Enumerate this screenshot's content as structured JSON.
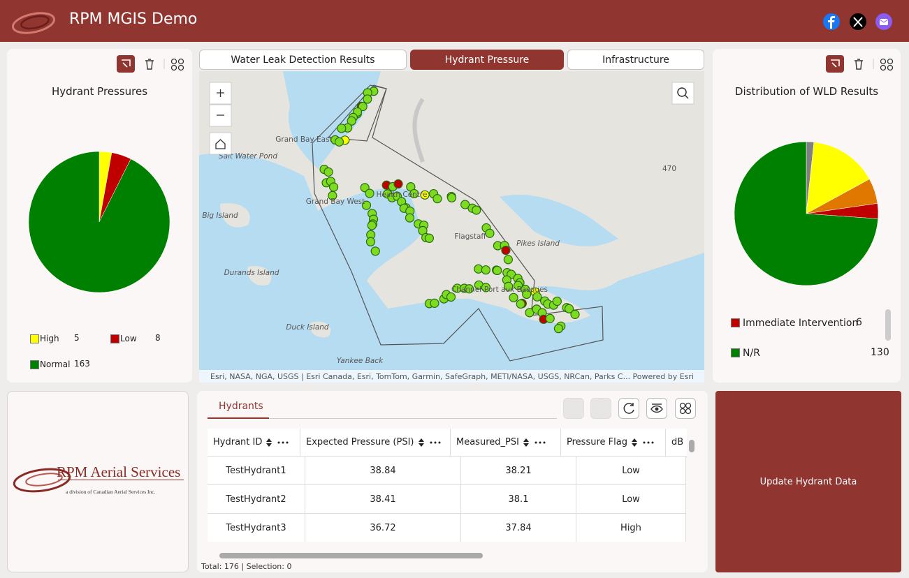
{
  "header": {
    "title": "RPM MGIS Demo"
  },
  "tabs": [
    "Water Leak Detection Results",
    "Hydrant Pressure",
    "Infrastructure"
  ],
  "chart_data": [
    {
      "type": "pie",
      "title": "Hydrant Pressures",
      "categories": [
        "High",
        "Low",
        "Normal"
      ],
      "values": [
        5,
        8,
        163
      ],
      "colors": [
        "#ffff00",
        "#c00000",
        "#008000"
      ]
    },
    {
      "type": "pie",
      "title": "Distribution of WLD Results",
      "categories": [
        null,
        null,
        null,
        "Immediate Intervention",
        "N/R"
      ],
      "values": [
        3,
        27,
        10,
        6,
        130
      ],
      "colors": [
        "#808080",
        "#ffff00",
        "#e07800",
        "#c00000",
        "#008000"
      ]
    }
  ],
  "map": {
    "labels": [
      "Grand Bay East",
      "Salt Water Pond",
      "Grand Bay West",
      "Big Island",
      "Durands Island",
      "Duck Island",
      "Yankee Back",
      "Pikes Island",
      "Flagstaff",
      "Health Centre",
      "Channel-Port aux Basques",
      "470"
    ],
    "attribution": "Esri, NASA, NGA, USGS | Esri Canada, Esri, TomTom, Garmin, SafeGraph, METI/NASA, USGS, NRCan, Parks C...",
    "powered": "Powered by Esri"
  },
  "logo": {
    "name": "RPM Aerial Services",
    "tagline": "a division of Canadian Aerial Services Inc."
  },
  "table": {
    "tab": "Hydrants",
    "columns": [
      "Hydrant ID",
      "Expected Pressure (PSI)",
      "Measured_PSI",
      "Pressure Flag",
      "dB"
    ],
    "rows": [
      [
        "TestHydrant1",
        38.84,
        38.21,
        "Low"
      ],
      [
        "TestHydrant2",
        38.41,
        38.1,
        "Low"
      ],
      [
        "TestHydrant3",
        36.72,
        37.84,
        "High"
      ]
    ],
    "footer": "Total: 176 | Selection: 0"
  },
  "button": "Update Hydrant Data"
}
